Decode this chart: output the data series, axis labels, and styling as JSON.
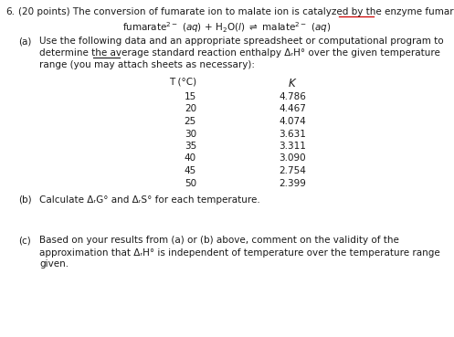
{
  "bg_color": "#ffffff",
  "text_color": "#1a1a1a",
  "red_color": "#cc0000",
  "fig_w": 4.97,
  "fig_h": 3.69,
  "dpi": 100,
  "fs": 7.5,
  "temperatures": [
    15,
    20,
    25,
    30,
    35,
    40,
    45,
    50
  ],
  "K_values": [
    4.786,
    4.467,
    4.074,
    3.631,
    3.311,
    3.09,
    2.754,
    2.399
  ]
}
